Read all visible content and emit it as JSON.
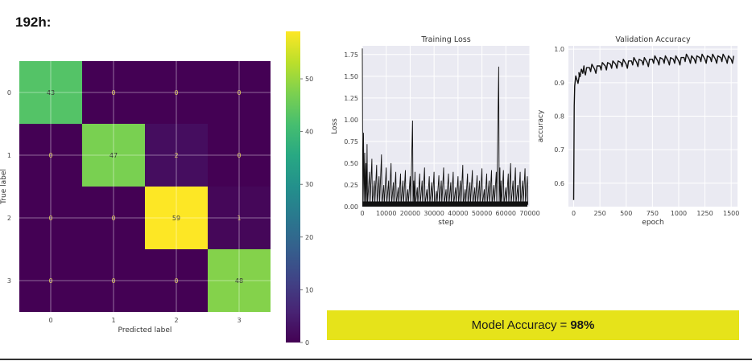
{
  "heading": "192h:",
  "summary": {
    "label": "Model Accuracy",
    "equals": "=",
    "value": "98%",
    "banner_color": "#e6e31a"
  },
  "chart_data": [
    {
      "type": "heatmap",
      "name": "confusion_matrix",
      "title": "",
      "xlabel": "Predicted label",
      "ylabel": "True label",
      "x_categories": [
        "0",
        "1",
        "2",
        "3"
      ],
      "y_categories": [
        "0",
        "1",
        "2",
        "3"
      ],
      "values": [
        [
          43,
          0,
          0,
          0
        ],
        [
          0,
          47,
          2,
          0
        ],
        [
          0,
          0,
          59,
          1
        ],
        [
          0,
          0,
          0,
          48
        ]
      ],
      "colormap": "viridis",
      "colorbar": {
        "min": 0,
        "max": 59,
        "ticks": [
          0,
          10,
          20,
          30,
          40,
          50
        ]
      },
      "grid": true
    },
    {
      "type": "line",
      "name": "training_loss",
      "title": "Training Loss",
      "xlabel": "step",
      "ylabel": "Loss",
      "xlim": [
        0,
        70000
      ],
      "ylim": [
        0,
        1.85
      ],
      "xticks": [
        0,
        10000,
        20000,
        30000,
        40000,
        50000,
        60000,
        70000
      ],
      "yticks": [
        0.0,
        0.25,
        0.5,
        0.75,
        1.0,
        1.25,
        1.5,
        1.75
      ],
      "series": [
        {
          "name": "loss",
          "x": [
            0,
            500,
            1000,
            1500,
            2000,
            3000,
            4000,
            5000,
            6000,
            7000,
            8000,
            9000,
            10000,
            11000,
            12000,
            13000,
            14000,
            15000,
            16000,
            17000,
            18000,
            19000,
            20000,
            21000,
            21500,
            22000,
            23000,
            24000,
            25000,
            26000,
            27000,
            28000,
            29000,
            30000,
            31000,
            32000,
            33000,
            34000,
            35000,
            36000,
            37000,
            38000,
            39000,
            40000,
            41000,
            42000,
            43000,
            44000,
            45000,
            46000,
            47000,
            48000,
            49000,
            50000,
            51000,
            52000,
            53000,
            54000,
            55000,
            56000,
            57000,
            57500,
            58000,
            59000,
            60000,
            61000,
            62000,
            63000,
            64000,
            65000,
            66000,
            67000,
            68000,
            69000
          ],
          "y": [
            1.82,
            0.85,
            0.62,
            0.5,
            0.72,
            0.4,
            0.55,
            0.3,
            0.48,
            0.35,
            0.6,
            0.25,
            0.45,
            0.3,
            0.5,
            0.28,
            0.4,
            0.22,
            0.38,
            0.3,
            0.42,
            0.2,
            0.35,
            0.99,
            0.3,
            0.4,
            0.22,
            0.38,
            0.3,
            0.45,
            0.2,
            0.35,
            0.28,
            0.4,
            0.18,
            0.36,
            0.3,
            0.45,
            0.2,
            0.38,
            0.28,
            0.4,
            0.22,
            0.35,
            0.3,
            0.48,
            0.2,
            0.38,
            0.28,
            0.42,
            0.22,
            0.36,
            0.3,
            0.44,
            0.2,
            0.38,
            0.3,
            0.42,
            0.25,
            0.4,
            1.61,
            0.45,
            0.3,
            0.42,
            0.22,
            0.38,
            0.5,
            0.3,
            0.45,
            0.25,
            0.4,
            0.3,
            0.44,
            0.35
          ],
          "floor": 0.02,
          "color": "#111111"
        }
      ],
      "grid": true
    },
    {
      "type": "line",
      "name": "validation_accuracy",
      "title": "Validation Accuracy",
      "xlabel": "epoch",
      "ylabel": "accuracy",
      "xlim": [
        -50,
        1560
      ],
      "ylim": [
        0.53,
        1.01
      ],
      "xticks": [
        0,
        250,
        500,
        750,
        1000,
        1250,
        1500
      ],
      "yticks": [
        0.6,
        0.7,
        0.8,
        0.9,
        1.0
      ],
      "series": [
        {
          "name": "accuracy",
          "x": [
            0,
            5,
            10,
            20,
            30,
            50,
            75,
            100,
            150,
            200,
            250,
            300,
            350,
            400,
            450,
            500,
            550,
            600,
            650,
            700,
            750,
            800,
            850,
            900,
            950,
            1000,
            1050,
            1100,
            1150,
            1200,
            1250,
            1300,
            1350,
            1400,
            1450,
            1500
          ],
          "y": [
            0.55,
            0.83,
            0.89,
            0.92,
            0.91,
            0.93,
            0.94,
            0.935,
            0.945,
            0.94,
            0.95,
            0.95,
            0.955,
            0.955,
            0.96,
            0.955,
            0.965,
            0.96,
            0.965,
            0.96,
            0.97,
            0.965,
            0.97,
            0.965,
            0.97,
            0.965,
            0.975,
            0.97,
            0.97,
            0.975,
            0.97,
            0.975,
            0.97,
            0.975,
            0.97,
            0.97
          ],
          "color": "#111111"
        }
      ],
      "grid": true
    }
  ]
}
